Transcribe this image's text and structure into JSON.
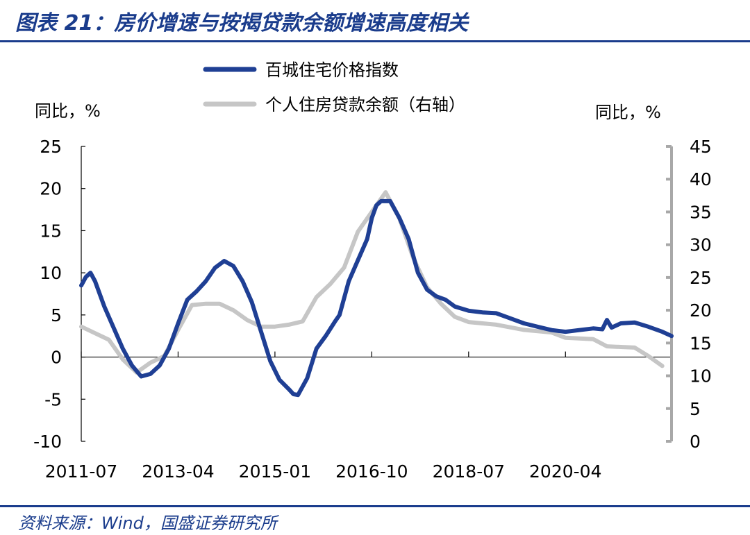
{
  "header": {
    "title": "图表 21：房价增速与按揭贷款余额增速高度相关"
  },
  "footer": {
    "source": "资料来源：Wind，国盛证券研究所"
  },
  "colors": {
    "primary_series": "#1f3f94",
    "secondary_series": "#c6c6c6",
    "brand": "#1a3c8c"
  },
  "chart_data": {
    "type": "line",
    "title": "房价增速与按揭贷款余额增速高度相关",
    "left_unit": "同比，%",
    "right_unit": "同比，%",
    "left_ylim": [
      -10,
      25
    ],
    "left_yticks": [
      -10,
      -5,
      0,
      5,
      10,
      15,
      20,
      25
    ],
    "left_ytick_labels": [
      "-10",
      "-5",
      "0",
      "5",
      "10",
      "15",
      "20",
      "25"
    ],
    "right_ylim": [
      0,
      45
    ],
    "right_yticks": [
      0,
      5,
      10,
      15,
      20,
      25,
      30,
      35,
      40,
      45
    ],
    "right_ytick_labels": [
      "0",
      "5",
      "10",
      "15",
      "20",
      "25",
      "30",
      "35",
      "40",
      "45"
    ],
    "x_start": "2011-07",
    "x_end": "2022-03",
    "x_tick_labels": [
      "2011-07",
      "2013-04",
      "2015-01",
      "2016-10",
      "2018-07",
      "2020-04"
    ],
    "legend": {
      "placement": "top-center"
    },
    "grid": false,
    "series": [
      {
        "name": "百城住宅价格指数",
        "axis": "left",
        "points": [
          [
            "2011-07",
            8.5
          ],
          [
            "2011-08",
            9.5
          ],
          [
            "2011-09",
            10.0
          ],
          [
            "2011-10",
            9.0
          ],
          [
            "2011-12",
            6.0
          ],
          [
            "2012-02",
            3.5
          ],
          [
            "2012-04",
            1.0
          ],
          [
            "2012-06",
            -1.0
          ],
          [
            "2012-08",
            -2.3
          ],
          [
            "2012-10",
            -2.0
          ],
          [
            "2012-12",
            -1.0
          ],
          [
            "2013-02",
            1.0
          ],
          [
            "2013-04",
            4.0
          ],
          [
            "2013-06",
            6.8
          ],
          [
            "2013-08",
            7.8
          ],
          [
            "2013-10",
            9.0
          ],
          [
            "2013-12",
            10.6
          ],
          [
            "2014-02",
            11.4
          ],
          [
            "2014-04",
            10.8
          ],
          [
            "2014-06",
            9.0
          ],
          [
            "2014-08",
            6.5
          ],
          [
            "2014-10",
            3.0
          ],
          [
            "2014-12",
            -0.5
          ],
          [
            "2015-02",
            -2.7
          ],
          [
            "2015-04",
            -3.8
          ],
          [
            "2015-05",
            -4.4
          ],
          [
            "2015-06",
            -4.5
          ],
          [
            "2015-08",
            -2.5
          ],
          [
            "2015-10",
            1.0
          ],
          [
            "2015-12",
            2.5
          ],
          [
            "2016-02",
            4.2
          ],
          [
            "2016-03",
            5.0
          ],
          [
            "2016-05",
            9.0
          ],
          [
            "2016-07",
            11.5
          ],
          [
            "2016-09",
            14.0
          ],
          [
            "2016-10",
            16.5
          ],
          [
            "2016-11",
            18.0
          ],
          [
            "2016-12",
            18.5
          ],
          [
            "2017-02",
            18.5
          ],
          [
            "2017-04",
            16.5
          ],
          [
            "2017-06",
            14.0
          ],
          [
            "2017-08",
            10.0
          ],
          [
            "2017-10",
            8.0
          ],
          [
            "2017-12",
            7.2
          ],
          [
            "2018-02",
            6.8
          ],
          [
            "2018-04",
            6.0
          ],
          [
            "2018-07",
            5.5
          ],
          [
            "2018-10",
            5.3
          ],
          [
            "2019-01",
            5.2
          ],
          [
            "2019-04",
            4.6
          ],
          [
            "2019-07",
            4.0
          ],
          [
            "2019-10",
            3.6
          ],
          [
            "2020-01",
            3.2
          ],
          [
            "2020-04",
            3.0
          ],
          [
            "2020-07",
            3.2
          ],
          [
            "2020-10",
            3.4
          ],
          [
            "2020-12",
            3.3
          ],
          [
            "2021-01",
            4.4
          ],
          [
            "2021-02",
            3.5
          ],
          [
            "2021-04",
            4.0
          ],
          [
            "2021-07",
            4.1
          ],
          [
            "2021-10",
            3.6
          ],
          [
            "2022-01",
            3.0
          ],
          [
            "2022-03",
            2.5
          ]
        ]
      },
      {
        "name": "个人住房贷款余额（右轴）",
        "axis": "right",
        "points": [
          [
            "2011-07",
            17.5
          ],
          [
            "2011-10",
            16.5
          ],
          [
            "2012-01",
            15.5
          ],
          [
            "2012-04",
            12.5
          ],
          [
            "2012-07",
            10.5
          ],
          [
            "2012-10",
            12.0
          ],
          [
            "2013-01",
            13.0
          ],
          [
            "2013-04",
            17.0
          ],
          [
            "2013-07",
            20.8
          ],
          [
            "2013-10",
            21.0
          ],
          [
            "2014-01",
            21.0
          ],
          [
            "2014-04",
            20.0
          ],
          [
            "2014-07",
            18.5
          ],
          [
            "2014-10",
            17.5
          ],
          [
            "2015-01",
            17.5
          ],
          [
            "2015-04",
            17.8
          ],
          [
            "2015-07",
            18.3
          ],
          [
            "2015-10",
            22.0
          ],
          [
            "2016-01",
            24.0
          ],
          [
            "2016-04",
            26.5
          ],
          [
            "2016-07",
            32.0
          ],
          [
            "2016-10",
            35.0
          ],
          [
            "2017-01",
            38.0
          ],
          [
            "2017-04",
            34.0
          ],
          [
            "2017-07",
            28.0
          ],
          [
            "2017-10",
            23.5
          ],
          [
            "2018-01",
            21.0
          ],
          [
            "2018-04",
            19.0
          ],
          [
            "2018-07",
            18.2
          ],
          [
            "2018-10",
            18.0
          ],
          [
            "2019-01",
            17.8
          ],
          [
            "2019-04",
            17.4
          ],
          [
            "2019-07",
            17.0
          ],
          [
            "2019-10",
            16.8
          ],
          [
            "2020-01",
            16.6
          ],
          [
            "2020-04",
            15.8
          ],
          [
            "2020-07",
            15.7
          ],
          [
            "2020-10",
            15.6
          ],
          [
            "2021-01",
            14.5
          ],
          [
            "2021-04",
            14.4
          ],
          [
            "2021-07",
            14.3
          ],
          [
            "2021-10",
            13.0
          ],
          [
            "2022-01",
            11.5
          ]
        ]
      }
    ]
  }
}
